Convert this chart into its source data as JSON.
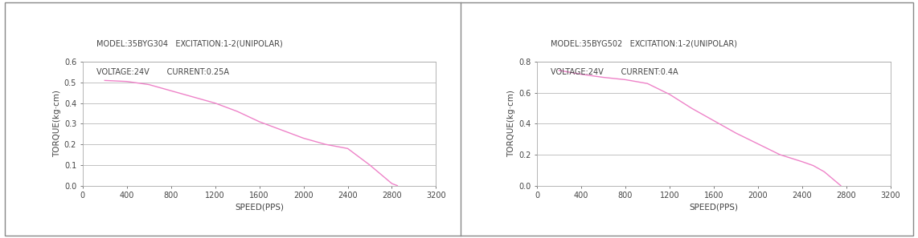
{
  "chart1": {
    "title_line1": "MODEL:35BYG304   EXCITATION:1-2(UNIPOLAR)",
    "title_line2": "VOLTAGE:24V       CURRENT:0.25A",
    "xlabel": "SPEED(PPS)",
    "ylabel": "TORQUE(kg·cm)",
    "xlim": [
      0,
      3200
    ],
    "ylim": [
      0,
      0.6
    ],
    "xticks": [
      0,
      400,
      800,
      1200,
      1600,
      2000,
      2400,
      2800,
      3200
    ],
    "yticks": [
      0,
      0.1,
      0.2,
      0.3,
      0.4,
      0.5,
      0.6
    ],
    "speed": [
      200,
      400,
      600,
      800,
      1000,
      1200,
      1400,
      1600,
      1800,
      2000,
      2200,
      2400,
      2600,
      2800,
      2850
    ],
    "torque": [
      0.51,
      0.505,
      0.49,
      0.46,
      0.43,
      0.4,
      0.36,
      0.31,
      0.27,
      0.23,
      0.2,
      0.18,
      0.1,
      0.01,
      0.0
    ],
    "line_color": "#EE82C8"
  },
  "chart2": {
    "title_line1": "MODEL:35BYG502   EXCITATION:1-2(UNIPOLAR)",
    "title_line2": "VOLTAGE:24V       CURRENT:0.4A",
    "xlabel": "SPEED(PPS)",
    "ylabel": "TORQUE(kg·cm)",
    "xlim": [
      0,
      3200
    ],
    "ylim": [
      0,
      0.8
    ],
    "xticks": [
      0,
      400,
      800,
      1200,
      1600,
      2000,
      2400,
      2800,
      3200
    ],
    "yticks": [
      0,
      0.2,
      0.4,
      0.6,
      0.8
    ],
    "speed": [
      200,
      400,
      600,
      800,
      1000,
      1200,
      1400,
      1600,
      1800,
      2000,
      2200,
      2400,
      2500,
      2600,
      2700,
      2750
    ],
    "torque": [
      0.745,
      0.72,
      0.7,
      0.685,
      0.66,
      0.59,
      0.5,
      0.42,
      0.34,
      0.27,
      0.2,
      0.155,
      0.13,
      0.09,
      0.03,
      0.0
    ],
    "line_color": "#EE82C8"
  },
  "bg_color": "#ffffff",
  "grid_color": "#aaaaaa",
  "spine_color": "#aaaaaa",
  "text_color": "#444444",
  "title_fontsize": 7.0,
  "axis_label_fontsize": 7.5,
  "tick_fontsize": 7.0
}
